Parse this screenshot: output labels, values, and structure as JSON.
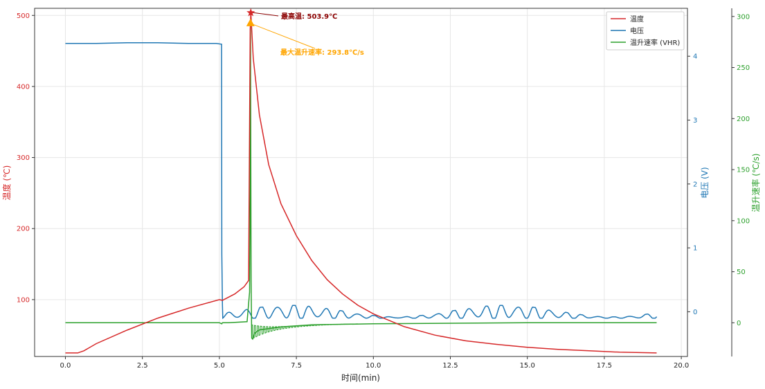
{
  "chart_data": {
    "type": "line",
    "xlabel": "时间(min)",
    "ylabel_left": "温度 (℃)",
    "ylabel_right1": "电压 (V)",
    "ylabel_right2": "温升速率 (℃/s)",
    "xlim": [
      -1,
      20.2
    ],
    "ylim_left": [
      20,
      510
    ],
    "ylim_right1": [
      -0.7,
      4.75
    ],
    "ylim_right2": [
      -33,
      308
    ],
    "x_ticks": [
      0.0,
      2.5,
      5.0,
      7.5,
      10.0,
      12.5,
      15.0,
      17.5,
      20.0
    ],
    "x_tick_labels": [
      "0.0",
      "2.5",
      "5.0",
      "7.5",
      "10.0",
      "12.5",
      "15.0",
      "17.5",
      "20.0"
    ],
    "y_left_ticks": [
      100,
      200,
      300,
      400,
      500
    ],
    "y_right1_ticks": [
      0,
      1,
      2,
      3,
      4
    ],
    "y_right2_ticks": [
      0,
      50,
      100,
      150,
      200,
      250,
      300
    ],
    "grid": true,
    "legend_position": "top-right",
    "colors": {
      "temperature": "#d62728",
      "voltage": "#1f77b4",
      "vhr": "#2ca02c",
      "annot_max_temp": "#8b0000",
      "annot_max_rate": "#ffa500"
    },
    "series": [
      {
        "name": "温度",
        "axis": "left",
        "x": [
          0,
          0.4,
          0.6,
          1.0,
          2.0,
          3.0,
          4.0,
          5.0,
          5.1,
          5.5,
          5.8,
          5.95,
          6.0,
          6.02,
          6.1,
          6.3,
          6.6,
          7.0,
          7.5,
          8.0,
          8.5,
          9.0,
          9.5,
          10.0,
          11.0,
          12.0,
          13.0,
          14.0,
          15.0,
          16.0,
          17.0,
          18.0,
          19.2
        ],
        "y": [
          25,
          25,
          28,
          38,
          57,
          74,
          88,
          100,
          99,
          108,
          118,
          127,
          480,
          503.9,
          440,
          360,
          290,
          235,
          190,
          155,
          128,
          108,
          92,
          80,
          62,
          50,
          42,
          37,
          33,
          30,
          28,
          26,
          25
        ]
      },
      {
        "name": "电压",
        "axis": "right1",
        "x": [
          0,
          1,
          2,
          3,
          4,
          4.9,
          5.05,
          5.07,
          5.08,
          5.1
        ],
        "y": [
          4.2,
          4.2,
          4.21,
          4.21,
          4.2,
          4.2,
          4.19,
          4.19,
          0.9,
          0.1
        ],
        "noisy_segment": {
          "x_start": 5.1,
          "x_end": 19.2,
          "baseline": -0.1,
          "amplitude_max": 0.2
        }
      },
      {
        "name": "温升速率 (VHR)",
        "axis": "right2",
        "x": [
          0,
          5.0,
          5.08,
          5.1,
          5.3,
          5.9,
          5.98,
          6.0,
          6.01,
          6.03,
          6.05,
          6.08,
          6.15,
          6.3,
          7.0,
          8.0,
          10.0,
          15.0,
          19.2
        ],
        "y": [
          0,
          0,
          -1,
          0,
          0,
          1,
          30,
          130,
          293.8,
          40,
          -15,
          -16,
          -10,
          -7,
          -4,
          -2,
          -1,
          0,
          0
        ]
      }
    ],
    "annotations": [
      {
        "id": "max_temp",
        "text": "最高温: 503.9℃",
        "x": 6.02,
        "y": 503.9,
        "axis": "left",
        "marker": "star"
      },
      {
        "id": "max_rate",
        "text": "最大温升速率: 293.8℃/s",
        "x": 6.01,
        "y": 293.8,
        "axis": "right2",
        "marker": "triangle"
      }
    ]
  }
}
